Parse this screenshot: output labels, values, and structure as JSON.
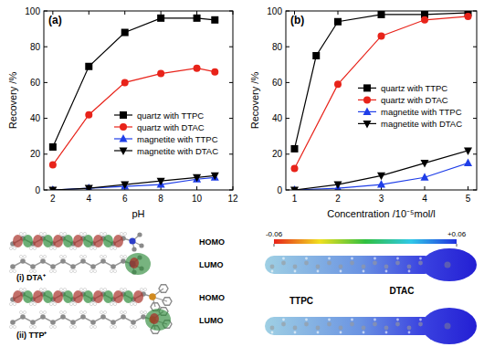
{
  "chart_data": [
    {
      "type": "line",
      "title": "(a)",
      "x_label": "pH",
      "y_label": "Recovery /%",
      "xlim": [
        1.5,
        12
      ],
      "xticks": [
        2,
        4,
        6,
        8,
        10,
        12
      ],
      "ylim": [
        0,
        100
      ],
      "yticks": [
        0,
        20,
        40,
        60,
        80,
        100
      ],
      "grid": false,
      "legend": "lower right",
      "series": [
        {
          "name": "quartz with TTPC",
          "color": "#000000",
          "marker": "square",
          "x": [
            2,
            4,
            6,
            8,
            10,
            11
          ],
          "values": [
            24,
            69,
            88,
            96,
            96,
            95
          ]
        },
        {
          "name": "quartz with DTAC",
          "color": "#e8231a",
          "marker": "circle",
          "x": [
            2,
            4,
            6,
            8,
            10,
            11
          ],
          "values": [
            14,
            42,
            60,
            65,
            68,
            66
          ]
        },
        {
          "name": "magnetite with TTPC",
          "color": "#1f3ee8",
          "marker": "triangle-up",
          "x": [
            2,
            4,
            6,
            8,
            10,
            11
          ],
          "values": [
            0,
            1,
            2,
            3,
            6,
            7
          ]
        },
        {
          "name": "magnetite with DTAC",
          "color": "#000000",
          "marker": "triangle-down",
          "x": [
            2,
            4,
            6,
            8,
            10,
            11
          ],
          "values": [
            0,
            1,
            3,
            5,
            7,
            8
          ]
        }
      ]
    },
    {
      "type": "line",
      "title": "(b)",
      "x_label": "Concentration /10⁻⁵mol/l",
      "y_label": "Recovery /%",
      "xlim": [
        0.8,
        5.2
      ],
      "xticks": [
        1,
        2,
        3,
        4,
        5
      ],
      "ylim": [
        0,
        100
      ],
      "yticks": [
        0,
        20,
        40,
        60,
        80,
        100
      ],
      "grid": false,
      "legend": "center right",
      "series": [
        {
          "name": "quartz with TTPC",
          "color": "#000000",
          "marker": "square",
          "x": [
            1,
            1.5,
            2,
            3,
            4,
            5
          ],
          "values": [
            23,
            75,
            94,
            98,
            98,
            99
          ]
        },
        {
          "name": "quartz with DTAC",
          "color": "#e8231a",
          "marker": "circle",
          "x": [
            1,
            2,
            3,
            4,
            5
          ],
          "values": [
            12,
            59,
            86,
            95,
            97
          ]
        },
        {
          "name": "magnetite with TTPC",
          "color": "#1f3ee8",
          "marker": "triangle-up",
          "x": [
            1,
            2,
            3,
            4,
            5
          ],
          "values": [
            0,
            1,
            3,
            7,
            15
          ]
        },
        {
          "name": "magnetite with DTAC",
          "color": "#000000",
          "marker": "triangle-down",
          "x": [
            1,
            2,
            3,
            4,
            5
          ],
          "values": [
            0,
            3,
            8,
            15,
            22
          ]
        }
      ]
    }
  ],
  "orbital_panel": {
    "molecules": [
      {
        "name": "(i) DTA⁺",
        "orbitals": [
          "HOMO",
          "LUMO"
        ]
      },
      {
        "name": "(ii) TTP⁺",
        "orbitals": [
          "HOMO",
          "LUMO"
        ]
      }
    ]
  },
  "esp_panel": {
    "colorbar": {
      "min": -0.06,
      "max": 0.06,
      "ticks": [
        -0.06,
        {
          "value": 0.06,
          "label": "+0.06"
        }
      ]
    },
    "maps": [
      "DTAC",
      "TTPC"
    ]
  }
}
